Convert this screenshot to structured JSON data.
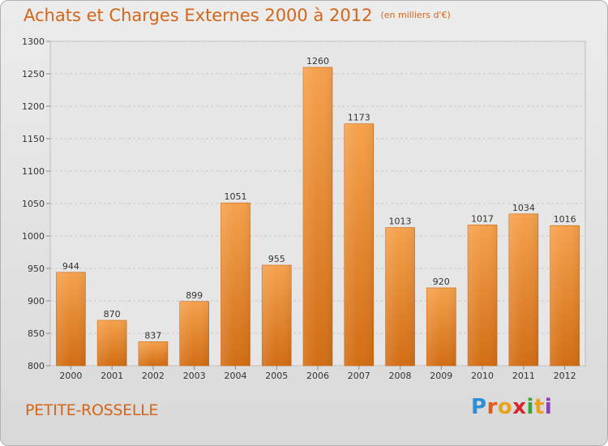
{
  "header": {
    "title": "Achats et Charges Externes 2000 à 2012",
    "subtitle": "(en milliers d'€)"
  },
  "footer": {
    "commune": "PETITE-ROSSELLE",
    "logo_letters": [
      "P",
      "r",
      "o",
      "x",
      "i",
      "t",
      "i"
    ]
  },
  "colors": {
    "bar_top": "#f5a14c",
    "bar_bottom": "#d26d14",
    "title": "#d4661a",
    "grid": "#c8c8c8"
  },
  "chart_data": {
    "type": "bar",
    "title": "Achats et Charges Externes 2000 à 2012",
    "subtitle": "(en milliers d'€)",
    "categories": [
      "2000",
      "2001",
      "2002",
      "2003",
      "2004",
      "2005",
      "2006",
      "2007",
      "2008",
      "2009",
      "2010",
      "2011",
      "2012"
    ],
    "values": [
      944,
      870,
      837,
      899,
      1051,
      955,
      1260,
      1173,
      1013,
      920,
      1017,
      1034,
      1016
    ],
    "ylim": [
      800,
      1300
    ],
    "yticks": [
      800,
      850,
      900,
      950,
      1000,
      1050,
      1100,
      1150,
      1200,
      1250,
      1300
    ],
    "grid": true,
    "xlabel": "",
    "ylabel": ""
  }
}
